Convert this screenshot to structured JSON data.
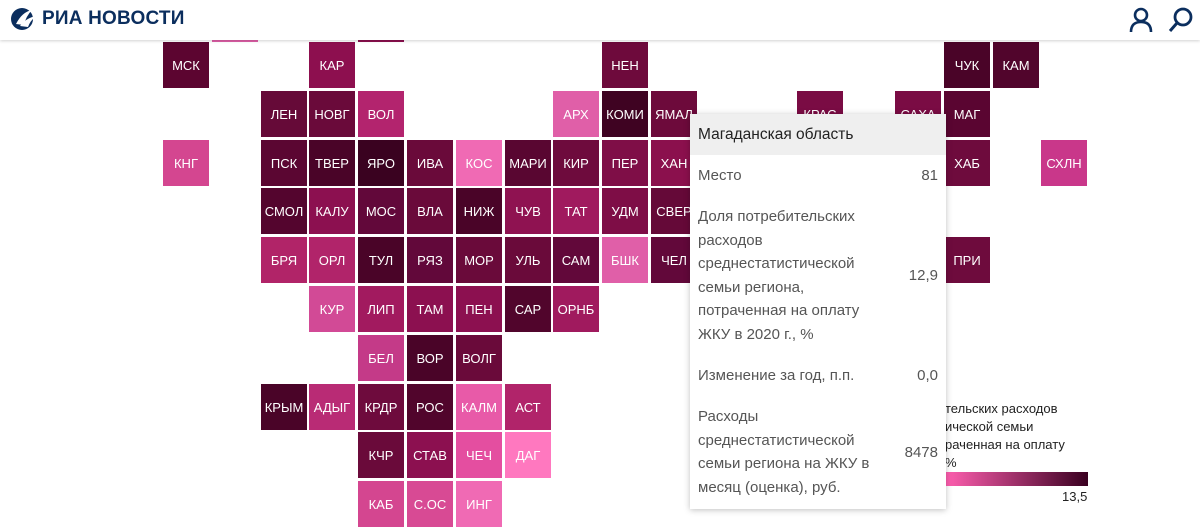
{
  "header": {
    "logo_text": "РИА НОВОСТИ",
    "user_icon": "user-icon",
    "search_icon": "search-icon"
  },
  "regions": [
    {
      "label": "МСК",
      "color": "#5c0530"
    },
    {
      "label": "КАР",
      "color": "#8d0f4f"
    },
    {
      "label": "НЕН",
      "color": "#6e0a3c"
    },
    {
      "label": "ЧУК",
      "color": "#4a0428"
    },
    {
      "label": "КАМ",
      "color": "#51052c"
    },
    {
      "label": "ЛЕН",
      "color": "#660a38"
    },
    {
      "label": "НОВГ",
      "color": "#6a0a3a"
    },
    {
      "label": "ВОЛ",
      "color": "#b3246e"
    },
    {
      "label": "АРХ",
      "color": "#e05fa8"
    },
    {
      "label": "КОМИ",
      "color": "#3f0322"
    },
    {
      "label": "ЯМАЛ",
      "color": "#6d0a3b"
    },
    {
      "label": "КРАС",
      "color": "#7a0c44"
    },
    {
      "label": "САХА",
      "color": "#7a0c44"
    },
    {
      "label": "МАГ",
      "color": "#5a0531"
    },
    {
      "label": "КНГ",
      "color": "#d44690"
    },
    {
      "label": "ПСК",
      "color": "#5b0632"
    },
    {
      "label": "ТВЕР",
      "color": "#4a0428"
    },
    {
      "label": "ЯРО",
      "color": "#3a0220"
    },
    {
      "label": "ИВА",
      "color": "#6a0a3a"
    },
    {
      "label": "КОС",
      "color": "#f06ab4"
    },
    {
      "label": "МАРИ",
      "color": "#590631"
    },
    {
      "label": "КИР",
      "color": "#6e0b3d"
    },
    {
      "label": "ПЕР",
      "color": "#7f0e47"
    },
    {
      "label": "ХАН",
      "color": "#8b104d"
    },
    {
      "label": "ХАБ",
      "color": "#6e0b3d"
    },
    {
      "label": "СХЛН",
      "color": "#c9378a"
    },
    {
      "label": "СМОЛ",
      "color": "#54052e"
    },
    {
      "label": "КАЛУ",
      "color": "#8c1050"
    },
    {
      "label": "МОС",
      "color": "#62083a"
    },
    {
      "label": "ВЛА",
      "color": "#6a0a3a"
    },
    {
      "label": "НИЖ",
      "color": "#4a0428"
    },
    {
      "label": "ЧУВ",
      "color": "#8f1251"
    },
    {
      "label": "ТАТ",
      "color": "#a01a5e"
    },
    {
      "label": "УДМ",
      "color": "#7e0d46"
    },
    {
      "label": "СВЕР",
      "color": "#650938"
    },
    {
      "label": "БРЯ",
      "color": "#b12468"
    },
    {
      "label": "ОРЛ",
      "color": "#b1246a"
    },
    {
      "label": "ТУЛ",
      "color": "#4a0428"
    },
    {
      "label": "РЯЗ",
      "color": "#62083a"
    },
    {
      "label": "МОР",
      "color": "#6a0a3a"
    },
    {
      "label": "УЛЬ",
      "color": "#6a0a3a"
    },
    {
      "label": "САМ",
      "color": "#62083a"
    },
    {
      "label": "БШК",
      "color": "#e05fa8"
    },
    {
      "label": "ЧЕЛ",
      "color": "#62083a"
    },
    {
      "label": "ПРИ",
      "color": "#6e0b3d"
    },
    {
      "label": "КУР",
      "color": "#d24a96"
    },
    {
      "label": "ЛИП",
      "color": "#a21a5f"
    },
    {
      "label": "ТАМ",
      "color": "#8c1050"
    },
    {
      "label": "ПЕН",
      "color": "#8c1050"
    },
    {
      "label": "САР",
      "color": "#51052c"
    },
    {
      "label": "ОРНБ",
      "color": "#a01a5e"
    },
    {
      "label": "БЕЛ",
      "color": "#c43a88"
    },
    {
      "label": "ВОР",
      "color": "#4a0428"
    },
    {
      "label": "ВОЛГ",
      "color": "#6a0a3a"
    },
    {
      "label": "КРЫМ",
      "color": "#4a0428"
    },
    {
      "label": "АДЫГ",
      "color": "#b92b75"
    },
    {
      "label": "КРДР",
      "color": "#6e0b3d"
    },
    {
      "label": "РОС",
      "color": "#51052c"
    },
    {
      "label": "КАЛМ",
      "color": "#e85aa8"
    },
    {
      "label": "АСТ",
      "color": "#b1246a"
    },
    {
      "label": "КЧР",
      "color": "#6a0a3a"
    },
    {
      "label": "СТАВ",
      "color": "#8c1050"
    },
    {
      "label": "ЧЕЧ",
      "color": "#e44ea0"
    },
    {
      "label": "ДАГ",
      "color": "#ff78bf"
    },
    {
      "label": "КАБ",
      "color": "#d44690"
    },
    {
      "label": "С.ОС",
      "color": "#d84a94"
    },
    {
      "label": "ИНГ",
      "color": "#f06ab4"
    }
  ],
  "legend": {
    "title": "тельских расходов\nической семьи\nраченная на оплату\n%",
    "max_value": "13,5"
  },
  "tooltip": {
    "region": "Магаданская область",
    "rows": [
      {
        "label": "Место",
        "value": "81"
      },
      {
        "label": "Доля потребительских расходов среднестатистической семьи региона, потраченная на оплату ЖКУ в 2020 г., %",
        "value": "12,9"
      },
      {
        "label": "Изменение за год, п.п.",
        "value": "0,0"
      },
      {
        "label": "Расходы среднестатистической семьи региона на ЖКУ в месяц (оценка), руб.",
        "value": "8478"
      }
    ]
  }
}
